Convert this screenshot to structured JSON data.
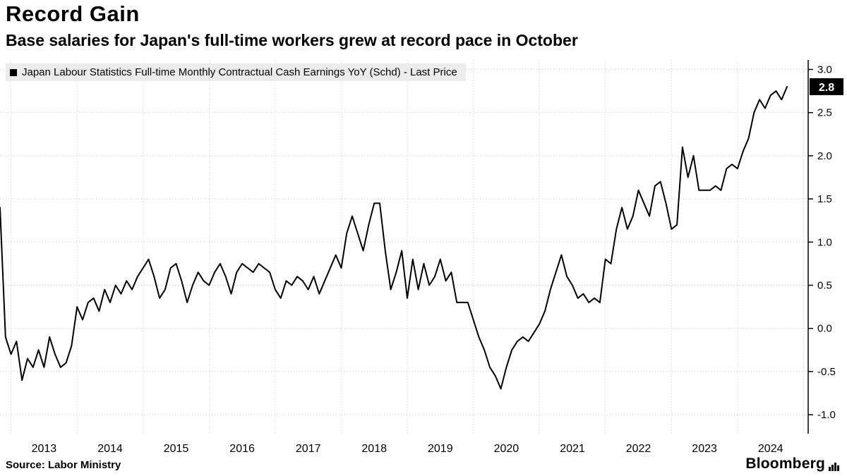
{
  "header": {
    "title": "Record Gain",
    "subtitle": "Base salaries for Japan's full-time workers grew at record pace in October"
  },
  "legend": {
    "label": "Japan Labour Statistics Full-time Monthly Contractual Cash Earnings YoY (Schd) - Last Price"
  },
  "footer": {
    "source": "Source: Labor Ministry",
    "brand": "Bloomberg"
  },
  "chart_data": {
    "type": "line",
    "title": "Record Gain",
    "series_name": "Japan Labour Statistics Full-time Monthly Contractual Cash Earnings YoY (Schd) - Last Price",
    "frequency": "monthly",
    "x_start": 2012.8333,
    "values": [
      1.4,
      -0.1,
      -0.3,
      -0.15,
      -0.6,
      -0.35,
      -0.45,
      -0.25,
      -0.45,
      -0.1,
      -0.3,
      -0.45,
      -0.4,
      -0.2,
      0.25,
      0.1,
      0.3,
      0.35,
      0.2,
      0.45,
      0.3,
      0.5,
      0.4,
      0.55,
      0.45,
      0.6,
      0.7,
      0.8,
      0.6,
      0.35,
      0.45,
      0.7,
      0.75,
      0.55,
      0.3,
      0.5,
      0.65,
      0.55,
      0.5,
      0.65,
      0.75,
      0.6,
      0.4,
      0.65,
      0.75,
      0.7,
      0.65,
      0.75,
      0.7,
      0.65,
      0.45,
      0.35,
      0.55,
      0.5,
      0.6,
      0.55,
      0.45,
      0.6,
      0.4,
      0.55,
      0.7,
      0.85,
      0.7,
      1.1,
      1.3,
      1.1,
      0.9,
      1.2,
      1.45,
      1.45,
      0.9,
      0.45,
      0.65,
      0.9,
      0.35,
      0.8,
      0.45,
      0.75,
      0.5,
      0.6,
      0.8,
      0.55,
      0.65,
      0.3,
      0.3,
      0.3,
      0.1,
      -0.1,
      -0.25,
      -0.45,
      -0.55,
      -0.7,
      -0.45,
      -0.25,
      -0.15,
      -0.1,
      -0.15,
      -0.05,
      0.05,
      0.2,
      0.45,
      0.65,
      0.85,
      0.6,
      0.5,
      0.35,
      0.4,
      0.3,
      0.35,
      0.3,
      0.8,
      0.75,
      1.15,
      1.4,
      1.15,
      1.3,
      1.6,
      1.45,
      1.3,
      1.65,
      1.7,
      1.45,
      1.15,
      1.2,
      2.1,
      1.75,
      2.0,
      1.6,
      1.6,
      1.6,
      1.65,
      1.6,
      1.85,
      1.9,
      1.85,
      2.05,
      2.2,
      2.5,
      2.65,
      2.55,
      2.7,
      2.75,
      2.65,
      2.8
    ],
    "yticks": [
      3.0,
      2.5,
      2.0,
      1.5,
      1.0,
      0.5,
      0.0,
      -0.5,
      -1.0
    ],
    "ytick_labels": [
      "3.0",
      "2.5",
      "2.0",
      "1.5",
      "1.0",
      "0.5",
      "0.0",
      "-0.5",
      "-1.0"
    ],
    "xtick_years": [
      2013,
      2014,
      2015,
      2016,
      2017,
      2018,
      2019,
      2020,
      2021,
      2022,
      2023,
      2024
    ],
    "xtick_labels": [
      "2013",
      "2014",
      "2015",
      "2016",
      "2017",
      "2018",
      "2019",
      "2020",
      "2021",
      "2022",
      "2023",
      "2024"
    ],
    "xlim": [
      2012.8333,
      2025.07
    ],
    "ylim": [
      -1.22,
      3.11
    ],
    "grid_year_start": 2013,
    "grid_year_end": 2025,
    "grid": true,
    "legend_position": "top-left",
    "last_price": 2.8,
    "last_price_label": "2.8",
    "line_color": "#000000",
    "grid_color": "#c4c4c4",
    "axis_color": "#000000"
  }
}
